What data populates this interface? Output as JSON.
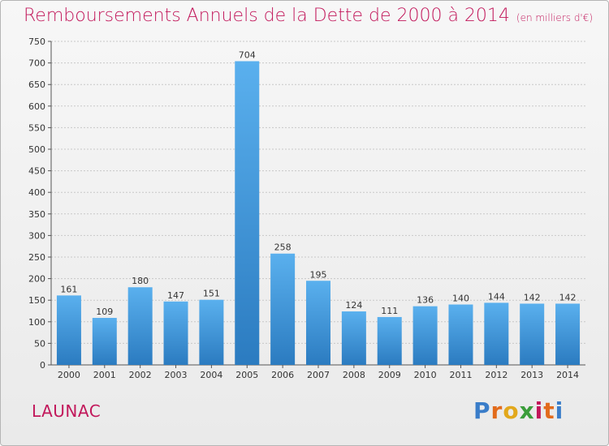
{
  "title": "Remboursements Annuels de la Dette de 2000 à 2014",
  "subtitle": "(en milliers d'€)",
  "commune": "LAUNAC",
  "logo": {
    "letters": [
      "P",
      "r",
      "o",
      "x",
      "i",
      "t",
      "i"
    ],
    "colors": [
      "#3a7dc9",
      "#e26b1c",
      "#e2a81c",
      "#3a9d3a",
      "#c2185b",
      "#e26b1c",
      "#3a7dc9"
    ]
  },
  "colors": {
    "bar": "#3f97dc",
    "bar_light": "#5ab0ee",
    "bar_dark": "#2f7fc4",
    "title": "#c2185b",
    "grid": "#c8c8c8"
  },
  "chart_data": {
    "type": "bar",
    "categories": [
      "2000",
      "2001",
      "2002",
      "2003",
      "2004",
      "2005",
      "2006",
      "2007",
      "2008",
      "2009",
      "2010",
      "2011",
      "2012",
      "2013",
      "2014"
    ],
    "values": [
      161,
      109,
      180,
      147,
      151,
      704,
      258,
      195,
      124,
      111,
      136,
      140,
      144,
      142,
      142
    ],
    "ylim": [
      0,
      750
    ],
    "yticks": [
      0,
      50,
      100,
      150,
      200,
      250,
      300,
      350,
      400,
      450,
      500,
      550,
      600,
      650,
      700,
      750
    ],
    "grid": true,
    "data_labels": true
  }
}
